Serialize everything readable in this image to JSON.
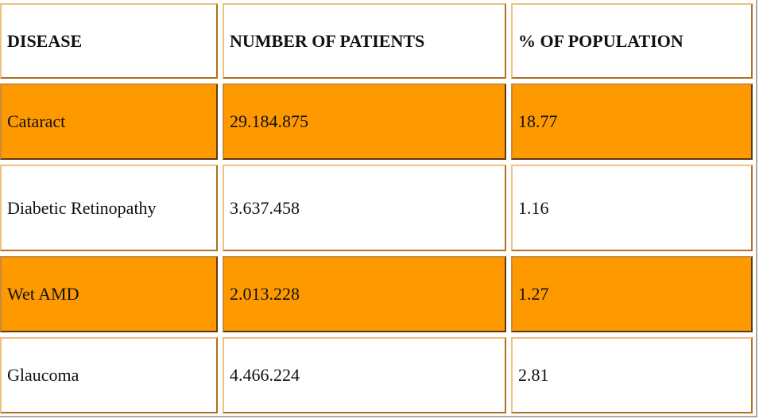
{
  "table": {
    "headers": [
      "DISEASE",
      "NUMBER OF PATIENTS",
      "% OF POPULATION"
    ],
    "rows": [
      [
        "Cataract",
        "29.184.875",
        "18.77"
      ],
      [
        "Diabetic Retinopathy",
        "3.637.458",
        "1.16"
      ],
      [
        "Wet AMD",
        "2.013.228",
        "1.27"
      ],
      [
        "Glaucoma",
        "4.466.224",
        "2.81"
      ]
    ],
    "row_highlight_color": "#ff9900",
    "border_color": "#b07020"
  }
}
